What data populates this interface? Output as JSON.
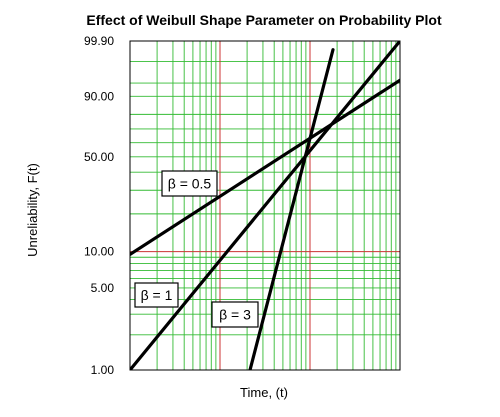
{
  "chart_data": {
    "type": "line",
    "title": "Effect of Weibull Shape Parameter on Probability Plot",
    "xlabel": "Time, (t)",
    "ylabel": "Unreliability, F(t)",
    "y_scale": "weibull",
    "x_scale": "log",
    "xlim": [
      0.01,
      10
    ],
    "ylim": [
      1.0,
      99.9
    ],
    "y_ticks": [
      "99.90",
      "90.00",
      "50.00",
      "10.00",
      "5.00",
      "1.00"
    ],
    "grid": true,
    "legend": "none",
    "colors": {
      "grid_minor": "#33bb33",
      "grid_major": "#cc3333",
      "line": "#000000"
    },
    "series": [
      {
        "name": "β = 0.5",
        "eta": 1,
        "beta": 0.5,
        "x": [
          0.01,
          10
        ],
        "y": [
          9.5,
          95.8
        ]
      },
      {
        "name": "β = 1",
        "eta": 1,
        "beta": 1,
        "x": [
          0.01,
          10
        ],
        "y": [
          1.0,
          99.9
        ]
      },
      {
        "name": "β = 3",
        "eta": 1,
        "beta": 3,
        "x": [
          0.2,
          1.8
        ],
        "y": [
          0.8,
          99.7
        ]
      }
    ]
  }
}
